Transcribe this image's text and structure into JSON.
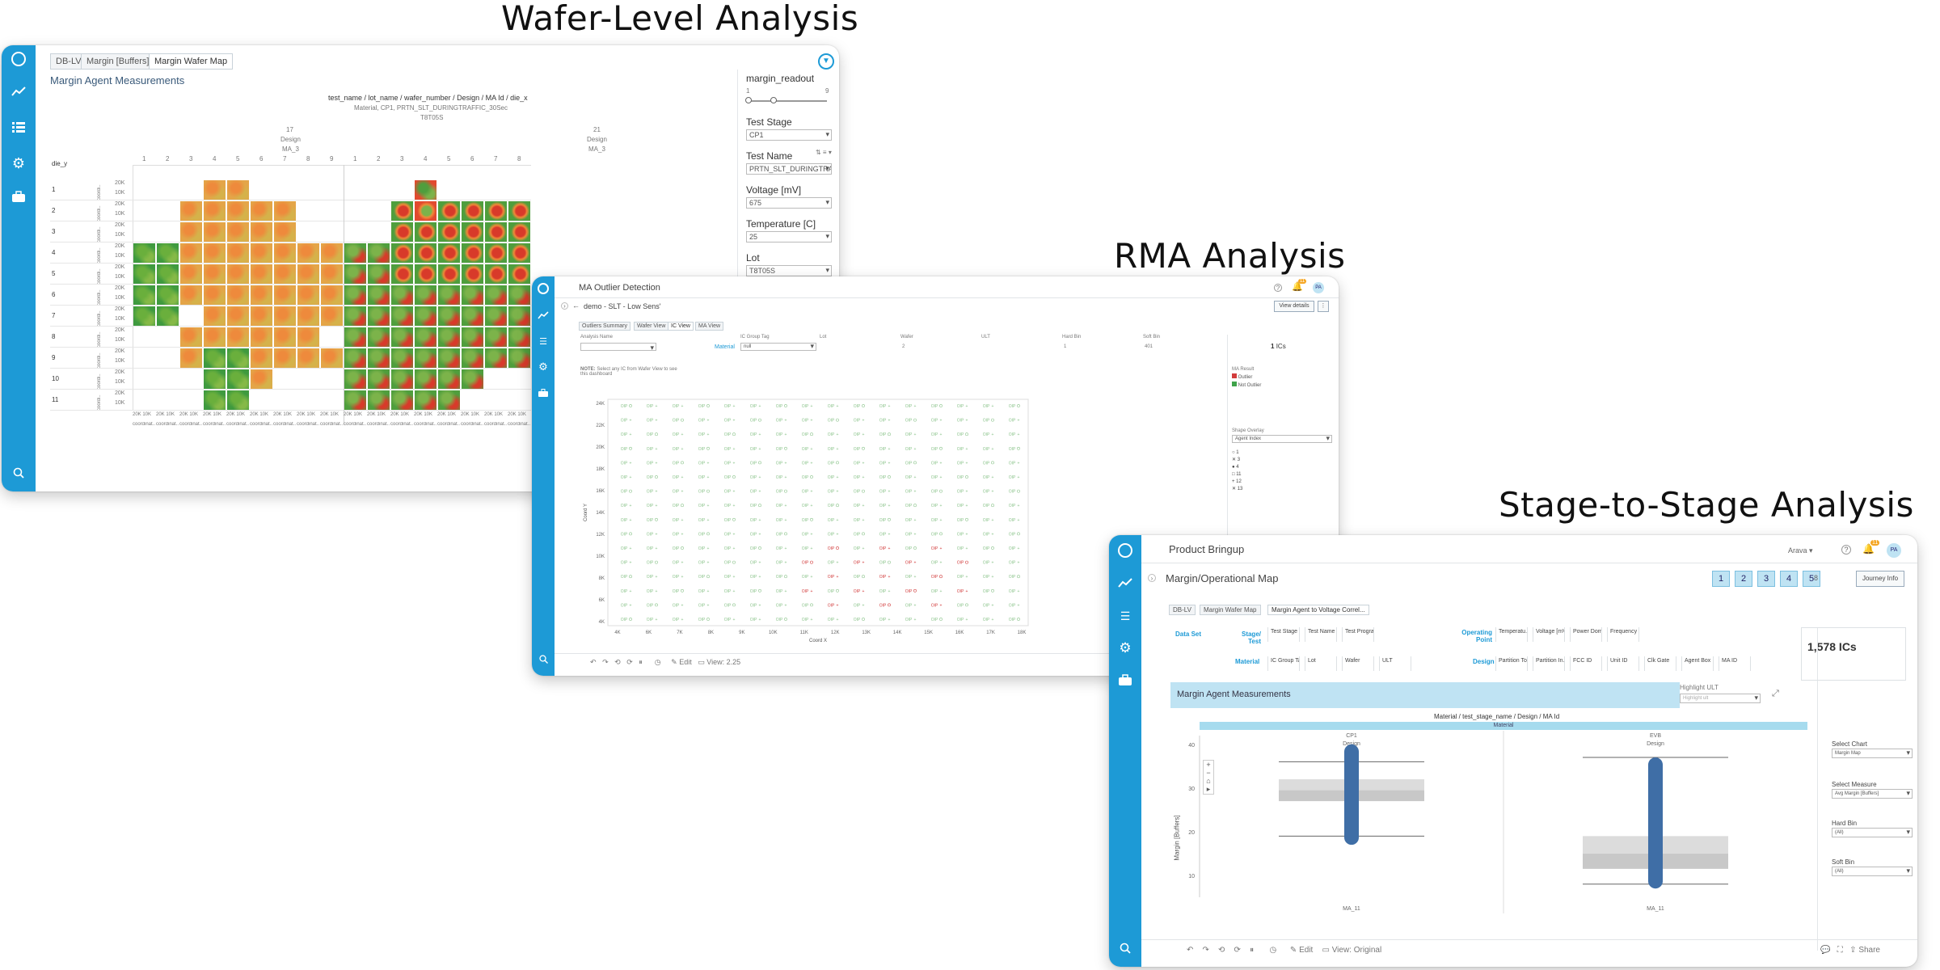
{
  "headings": {
    "wafer": "Wafer-Level Analysis",
    "rma": "RMA Analysis",
    "stage": "Stage-to-Stage Analysis"
  },
  "colors": {
    "rail": "#1d9ad6",
    "outlier": "#d23c3c",
    "not_outlier": "#3fa34a",
    "box": "#3f6ea6"
  },
  "wafer": {
    "tabs": [
      "DB-LV",
      "Margin [Buffers]",
      "Margin Wafer Map"
    ],
    "title": "Margin Agent Measurements",
    "header_path": "test_name / lot_name / wafer_number / Design / MA Id / die_x",
    "header_sub": "Material, CP1, PRTN_SLT_DURINGTRAFFIC_30Sec",
    "header_lot": "T8T05S",
    "group_left": {
      "wafer": "17",
      "design": "Design",
      "ma": "MA_3"
    },
    "group_right": {
      "wafer": "21",
      "design": "Design",
      "ma": "MA_3"
    },
    "die_y_label": "die_y",
    "cols_left": [
      "1",
      "2",
      "3",
      "4",
      "5",
      "6",
      "7",
      "8",
      "9"
    ],
    "cols_right": [
      "1",
      "2",
      "3",
      "4",
      "5",
      "6",
      "7",
      "8"
    ],
    "rows": [
      "1",
      "2",
      "3",
      "4",
      "5",
      "6",
      "7",
      "8",
      "9",
      "10",
      "11"
    ],
    "row_ticks": [
      "20K",
      "10K"
    ],
    "row_axis": "coordi..",
    "x_ticks": [
      "20K",
      "10K"
    ],
    "x_axis": "coordinat..",
    "filters": {
      "readout_label": "margin_readout",
      "readout_min": "1",
      "readout_max": "9",
      "test_stage_label": "Test Stage",
      "test_stage_value": "CP1",
      "test_name_label": "Test Name",
      "test_name_value": "PRTN_SLT_DURINGTRA...",
      "voltage_label": "Voltage [mV]",
      "voltage_value": "675",
      "temperature_label": "Temperature [C]",
      "temperature_value": "25",
      "lot_label": "Lot",
      "lot_value": "T8T05S"
    }
  },
  "rma": {
    "app_title": "MA Outlier Detection",
    "badge": "11",
    "avatar": "PA",
    "breadcrumb": "demo - SLT - Low Sens'",
    "view_details": "View details",
    "tabs": [
      "Outliers Summary",
      "Wafer View",
      "IC View",
      "MA View"
    ],
    "filter_labels": [
      "Analysis Name",
      "IC Group Tag",
      "Lot",
      "Wafer",
      "ULT",
      "Hard Bin",
      "Soft Bin"
    ],
    "material_label": "Material",
    "ic_group_value": "null",
    "wafer_value": "2",
    "hard_bin_value": "1",
    "soft_bin_value": "401",
    "ics_count": "1",
    "ics_label": "ICs",
    "note_bold": "NOTE:",
    "note_text": "Select any IC from Wafer View to see this dashboard",
    "ma_result_label": "MA Result",
    "legend": [
      "Outlier",
      "Not Outlier"
    ],
    "shape_overlay_label": "Shape Overlay",
    "shape_overlay_value": "Agent Index",
    "shape_legend": [
      "1",
      "3",
      "4",
      "11",
      "12",
      "13"
    ],
    "y_axis_label": "Coord Y",
    "x_axis_label": "Coord X",
    "y_ticks": [
      "24K",
      "22K",
      "20K",
      "18K",
      "16K",
      "14K",
      "12K",
      "10K",
      "8K",
      "6K",
      "4K"
    ],
    "x_ticks": [
      "4K",
      "6K",
      "7K",
      "8K",
      "9K",
      "10K",
      "11K",
      "12K",
      "13K",
      "14K",
      "15K",
      "16K",
      "17K",
      "18K"
    ],
    "point_label": "OIP",
    "footer_edit": "Edit",
    "footer_view": "View: 2.25"
  },
  "stage": {
    "app_title": "Product Bringup",
    "user": "Arava",
    "badge": "11",
    "avatar": "PA",
    "page_title": "Margin/Operational Map",
    "steps": [
      "1",
      "2",
      "3",
      "4",
      "5"
    ],
    "step_count": "8",
    "journey": "Journey Info",
    "tabs": [
      "DB-LV",
      "Margin Wafer Map",
      "Margin Agent to Voltage Correl..."
    ],
    "data_set_label": "Data Set",
    "stage_test_label": "Stage/ Test",
    "material_label": "Material",
    "operating_point_label": "Operating Point",
    "design_label": "Design",
    "row1_cols": [
      "Test Stage",
      "Test Name",
      "Test Program"
    ],
    "row1_right": [
      "Temperatu...",
      "Voltage [mV]",
      "Power Dom...",
      "Frequency [..."
    ],
    "row2_cols": [
      "IC Group Tag",
      "Lot",
      "Wafer",
      "ULT"
    ],
    "row2_right": [
      "Partition To...",
      "Partition In...",
      "FCC ID",
      "Unit ID",
      "Clk Gate",
      "Agent Box",
      "MA ID"
    ],
    "ics_count": "1,578 ICs",
    "chart_title": "Margin Agent Measurements",
    "highlight_label": "Highlight ULT",
    "highlight_placeholder": "Highlight ult",
    "header_path": "Material / test_stage_name / Design / MA Id",
    "header_material": "Material",
    "groups": [
      {
        "stage": "CP1",
        "design": "Design",
        "ma": "MA_11"
      },
      {
        "stage": "EVB",
        "design": "Design",
        "ma": "MA_11"
      }
    ],
    "y_axis_label": "Margin [Buffers]",
    "y_ticks": [
      "40",
      "30",
      "20",
      "10"
    ],
    "side": {
      "select_chart_label": "Select Chart",
      "select_chart_value": "Margin Map",
      "select_measure_label": "Select Measure",
      "select_measure_value": "Avg Margin [Buffers]",
      "hard_bin_label": "Hard Bin",
      "hard_bin_value": "(All)",
      "soft_bin_label": "Soft Bin",
      "soft_bin_value": "(All)"
    },
    "footer_edit": "Edit",
    "footer_view": "View: Original",
    "footer_share": "Share"
  }
}
